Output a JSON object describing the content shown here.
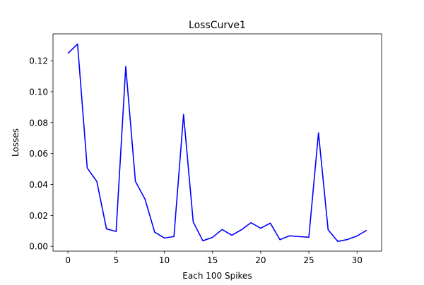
{
  "chart_data": {
    "type": "line",
    "title": "LossCurve1",
    "xlabel": "Each 100 Spikes",
    "ylabel": "Losses",
    "xlim": [
      -1.55,
      32.55
    ],
    "ylim": [
      -0.0031,
      0.1374
    ],
    "grid": false,
    "x_ticks": [
      0,
      5,
      10,
      15,
      20,
      25,
      30
    ],
    "x_tick_labels": [
      "0",
      "5",
      "10",
      "15",
      "20",
      "25",
      "30"
    ],
    "y_ticks": [
      0.0,
      0.02,
      0.04,
      0.06,
      0.08,
      0.1,
      0.12
    ],
    "y_tick_labels": [
      "0.00",
      "0.02",
      "0.04",
      "0.06",
      "0.08",
      "0.10",
      "0.12"
    ],
    "series": [
      {
        "color": "#0000ff",
        "x": [
          0,
          1,
          2,
          3,
          4,
          5,
          6,
          7,
          8,
          9,
          10,
          11,
          12,
          13,
          14,
          15,
          16,
          17,
          18,
          19,
          20,
          21,
          22,
          23,
          24,
          25,
          26,
          27,
          28,
          29,
          30,
          31
        ],
        "values": [
          0.1248,
          0.1308,
          0.0507,
          0.0419,
          0.0113,
          0.0096,
          0.1163,
          0.0421,
          0.0305,
          0.0092,
          0.0054,
          0.0063,
          0.0853,
          0.0158,
          0.0036,
          0.0058,
          0.0109,
          0.0072,
          0.0107,
          0.0153,
          0.0117,
          0.015,
          0.0043,
          0.0068,
          0.0063,
          0.0059,
          0.0734,
          0.0107,
          0.0032,
          0.0044,
          0.0067,
          0.0104
        ]
      }
    ]
  }
}
